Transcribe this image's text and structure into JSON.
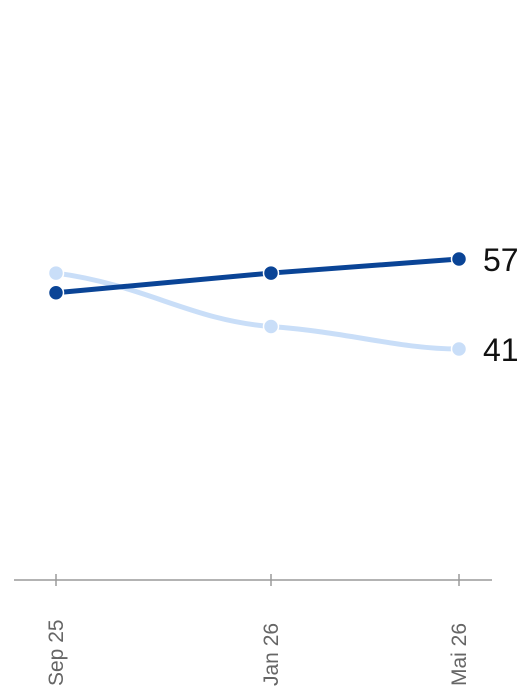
{
  "chart_data": {
    "type": "line",
    "title": "",
    "xlabel": "",
    "ylabel": "",
    "categories": [
      "Sep 25",
      "Jan 26",
      "Mai 26"
    ],
    "ylim": [
      0,
      100
    ],
    "grid": false,
    "legend": "none",
    "series": [
      {
        "color": "#0a4496",
        "values": [
          51,
          54.5,
          57
        ],
        "end_label": "57"
      },
      {
        "color": "#c9def8",
        "values": [
          54.5,
          45,
          41
        ],
        "end_label": "41"
      }
    ]
  }
}
